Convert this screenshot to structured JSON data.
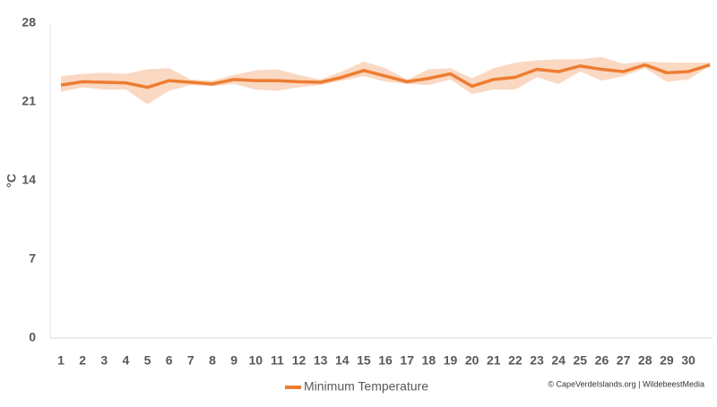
{
  "chart_data": {
    "type": "line",
    "y_label": "°C",
    "categories": [
      "1",
      "2",
      "3",
      "4",
      "5",
      "6",
      "7",
      "8",
      "9",
      "10",
      "11",
      "12",
      "13",
      "14",
      "15",
      "16",
      "17",
      "18",
      "19",
      "20",
      "21",
      "22",
      "23",
      "24",
      "25",
      "26",
      "27",
      "28",
      "29",
      "30",
      null
    ],
    "series": [
      {
        "name": "Minimum Temperature",
        "color": "#ed7d31",
        "values": [
          22.5,
          22.8,
          22.75,
          22.7,
          22.3,
          22.9,
          22.75,
          22.6,
          23.0,
          22.9,
          22.9,
          22.8,
          22.75,
          23.2,
          23.8,
          23.3,
          22.8,
          23.1,
          23.5,
          22.4,
          23.0,
          23.2,
          23.9,
          23.7,
          24.2,
          23.9,
          23.7,
          24.3,
          23.6,
          23.7,
          24.3
        ]
      }
    ],
    "band": {
      "color": "#f8cbad",
      "upper": [
        23.3,
        23.5,
        23.6,
        23.5,
        23.9,
        24.0,
        23.0,
        22.9,
        23.4,
        23.8,
        23.9,
        23.4,
        23.0,
        23.7,
        24.6,
        24.0,
        23.0,
        23.9,
        24.0,
        23.1,
        24.0,
        24.5,
        24.7,
        24.8,
        24.8,
        25.0,
        24.4,
        24.6,
        24.5,
        24.5,
        24.5
      ],
      "lower": [
        21.9,
        22.3,
        22.1,
        22.1,
        20.8,
        22.0,
        22.5,
        22.4,
        22.6,
        22.1,
        22.0,
        22.3,
        22.5,
        22.9,
        23.3,
        22.8,
        22.6,
        22.5,
        23.0,
        21.7,
        22.1,
        22.1,
        23.2,
        22.6,
        23.7,
        22.9,
        23.3,
        24.0,
        22.8,
        23.0,
        24.2
      ]
    },
    "ylim": [
      0,
      28
    ],
    "yticks": [
      0,
      7,
      14,
      21,
      28
    ],
    "grid": false,
    "credit": "© CapeVerdeIslands.org | WildebeestMedia"
  }
}
